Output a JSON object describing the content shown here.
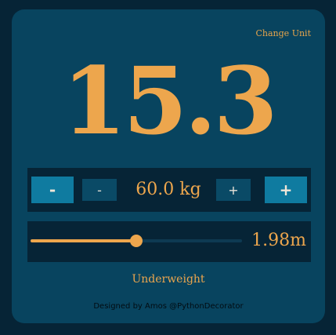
{
  "header": {
    "change_unit_label": "Change Unit"
  },
  "bmi": {
    "value": "15.3",
    "category": "Underweight"
  },
  "weight": {
    "big_minus": "-",
    "small_minus": "-",
    "value": "60.0 kg",
    "small_plus": "+",
    "big_plus": "+"
  },
  "height": {
    "value": "1.98m",
    "slider_fraction": 0.5
  },
  "footer": {
    "credit": "Designed by Amos @PythonDecorator"
  },
  "colors": {
    "background": "#062436",
    "card": "#08445f",
    "accent": "#eda64d",
    "button_primary": "#0f7ba0",
    "button_secondary": "#0a4a66"
  }
}
